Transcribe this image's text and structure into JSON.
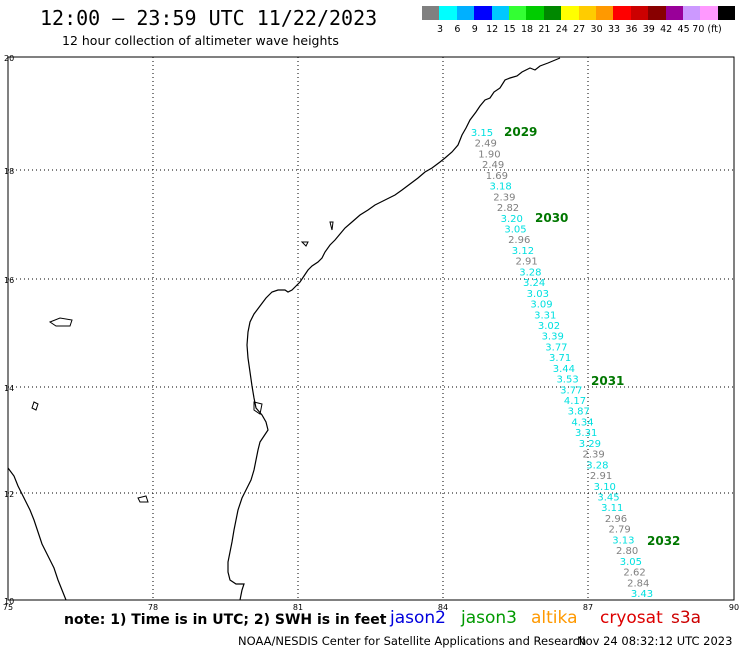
{
  "header": {
    "title": "12:00 – 23:59 UTC 11/22/2023",
    "subtitle": "12 hour collection of altimeter wave heights"
  },
  "color_scale": {
    "colors": [
      "#808080",
      "#00ffff",
      "#00b0ff",
      "#0000ff",
      "#00c8ff",
      "#33ff33",
      "#00cc00",
      "#008800",
      "#ffff00",
      "#ffcc00",
      "#ff9900",
      "#ff0000",
      "#cc0000",
      "#880000",
      "#990099",
      "#cc99ff",
      "#ff99ff",
      "#000000"
    ],
    "labels": [
      "3",
      "6",
      "9",
      "12",
      "15",
      "18",
      "21",
      "24",
      "27",
      "30",
      "33",
      "36",
      "39",
      "42",
      "45",
      "70 (ft)"
    ]
  },
  "axes": {
    "lat_labels": [
      "20",
      "18",
      "16",
      "14",
      "12",
      "10"
    ],
    "lon_labels": [
      "75",
      "78",
      "81",
      "84",
      "87",
      "90"
    ]
  },
  "track_times": [
    "2029",
    "2030",
    "2031",
    "2032"
  ],
  "wave_heights": [
    {
      "v": "3.15",
      "c": "#00e0e0"
    },
    {
      "v": "2.49",
      "c": "#808080"
    },
    {
      "v": "1.90",
      "c": "#808080"
    },
    {
      "v": "2.49",
      "c": "#808080"
    },
    {
      "v": "1.69",
      "c": "#808080"
    },
    {
      "v": "3.18",
      "c": "#00e0e0"
    },
    {
      "v": "2.39",
      "c": "#808080"
    },
    {
      "v": "2.82",
      "c": "#808080"
    },
    {
      "v": "3.20",
      "c": "#00e0e0"
    },
    {
      "v": "3.05",
      "c": "#00e0e0"
    },
    {
      "v": "2.96",
      "c": "#808080"
    },
    {
      "v": "3.12",
      "c": "#00e0e0"
    },
    {
      "v": "2.91",
      "c": "#808080"
    },
    {
      "v": "3.28",
      "c": "#00e0e0"
    },
    {
      "v": "3.24",
      "c": "#00e0e0"
    },
    {
      "v": "3.03",
      "c": "#00e0e0"
    },
    {
      "v": "3.09",
      "c": "#00e0e0"
    },
    {
      "v": "3.31",
      "c": "#00e0e0"
    },
    {
      "v": "3.02",
      "c": "#00e0e0"
    },
    {
      "v": "3.39",
      "c": "#00e0e0"
    },
    {
      "v": "3.77",
      "c": "#00e0e0"
    },
    {
      "v": "3.71",
      "c": "#00e0e0"
    },
    {
      "v": "3.44",
      "c": "#00e0e0"
    },
    {
      "v": "3.53",
      "c": "#00e0e0"
    },
    {
      "v": "3.77",
      "c": "#00e0e0"
    },
    {
      "v": "4.17",
      "c": "#00e0e0"
    },
    {
      "v": "3.87",
      "c": "#00e0e0"
    },
    {
      "v": "4.34",
      "c": "#00e0e0"
    },
    {
      "v": "3.31",
      "c": "#00e0e0"
    },
    {
      "v": "3.29",
      "c": "#00e0e0"
    },
    {
      "v": "2.39",
      "c": "#808080"
    },
    {
      "v": "3.28",
      "c": "#00e0e0"
    },
    {
      "v": "2.91",
      "c": "#808080"
    },
    {
      "v": "3.10",
      "c": "#00e0e0"
    },
    {
      "v": "3.45",
      "c": "#00e0e0"
    },
    {
      "v": "3.11",
      "c": "#00e0e0"
    },
    {
      "v": "2.96",
      "c": "#808080"
    },
    {
      "v": "2.79",
      "c": "#808080"
    },
    {
      "v": "3.13",
      "c": "#00e0e0"
    },
    {
      "v": "2.80",
      "c": "#808080"
    },
    {
      "v": "3.05",
      "c": "#00e0e0"
    },
    {
      "v": "2.62",
      "c": "#808080"
    },
    {
      "v": "2.84",
      "c": "#808080"
    },
    {
      "v": "3.43",
      "c": "#00e0e0"
    }
  ],
  "note": "note:  1) Time is in UTC;  2) SWH is in feet",
  "satellites": [
    {
      "name": "jason2",
      "color": "#0000dd"
    },
    {
      "name": "jason3",
      "color": "#009900"
    },
    {
      "name": "altika",
      "color": "#ff9900"
    },
    {
      "name": "cryosat",
      "color": "#dd0000"
    },
    {
      "name": "s3a",
      "color": "#cc0000"
    }
  ],
  "footer": {
    "left": "NOAA/NESDIS Center for Satellite Applications and Research",
    "right": "Nov 24 08:32:12 UTC 2023"
  }
}
